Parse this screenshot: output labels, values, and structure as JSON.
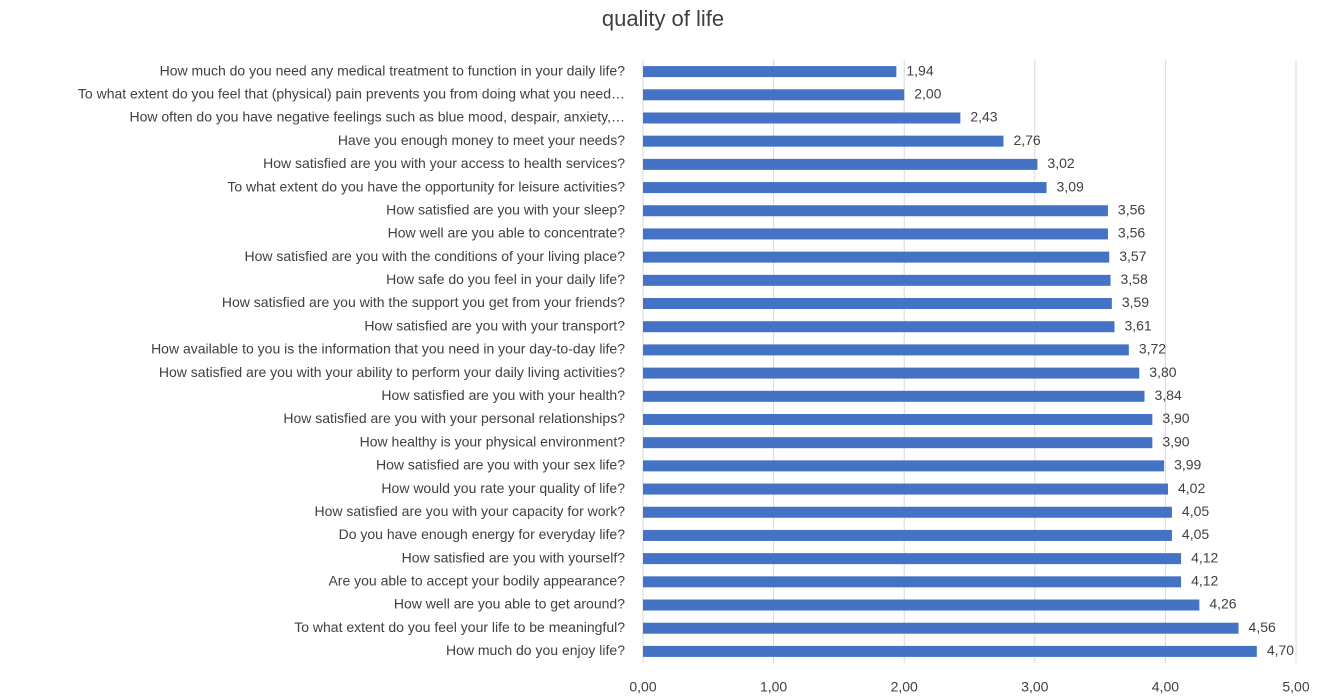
{
  "chart_data": {
    "type": "bar",
    "orientation": "horizontal",
    "title": "quality of life",
    "categories": [
      "How much do you need any medical treatment to function in your daily life?",
      "To what extent do you feel that (physical) pain prevents you from doing what you need…",
      "How often do you have negative feelings such as blue mood, despair, anxiety,…",
      "Have you enough money to meet your needs?",
      "How satisfied are you with your access to health services?",
      "To what extent do you have the opportunity for leisure activities?",
      "How satisfied are you with your sleep?",
      "How well are you able to concentrate?",
      "How satisfied are you with the conditions of your living place?",
      "How safe do you feel in your daily life?",
      "How satisfied are you with the support you get from your friends?",
      "How satisfied are you with your transport?",
      "How available to you is the information that you need in your day-to-day life?",
      "How satisfied are you with your ability to perform your daily living activities?",
      "How satisfied are you with your health?",
      "How satisfied are you with your personal relationships?",
      "How healthy is your physical environment?",
      "How satisfied are you with your sex life?",
      "How would you rate your quality of life?",
      "How satisfied are you with your capacity for work?",
      "Do you have enough energy for everyday life?",
      "How satisfied are you with yourself?",
      "Are you able to accept your bodily appearance?",
      "How well are you able to get around?",
      "To what extent do you feel your life to be meaningful?",
      "How much do you enjoy life?"
    ],
    "values": [
      1.94,
      2.0,
      2.43,
      2.76,
      3.02,
      3.09,
      3.56,
      3.56,
      3.57,
      3.58,
      3.59,
      3.61,
      3.72,
      3.8,
      3.84,
      3.9,
      3.9,
      3.99,
      4.02,
      4.05,
      4.05,
      4.12,
      4.12,
      4.26,
      4.56,
      4.7
    ],
    "value_labels": [
      "1,94",
      "2,00",
      "2,43",
      "2,76",
      "3,02",
      "3,09",
      "3,56",
      "3,56",
      "3,57",
      "3,58",
      "3,59",
      "3,61",
      "3,72",
      "3,80",
      "3,84",
      "3,90",
      "3,90",
      "3,99",
      "4,02",
      "4,05",
      "4,05",
      "4,12",
      "4,12",
      "4,26",
      "4,56",
      "4,70"
    ],
    "color": "#4472c4",
    "xlim": [
      0,
      5
    ],
    "xticks": [
      {
        "value": 0,
        "label": "0,00"
      },
      {
        "value": 1,
        "label": "1,00"
      },
      {
        "value": 2,
        "label": "2,00"
      },
      {
        "value": 3,
        "label": "3,00"
      },
      {
        "value": 4,
        "label": "4,00"
      },
      {
        "value": 5,
        "label": "5,00"
      }
    ],
    "grid": true
  }
}
